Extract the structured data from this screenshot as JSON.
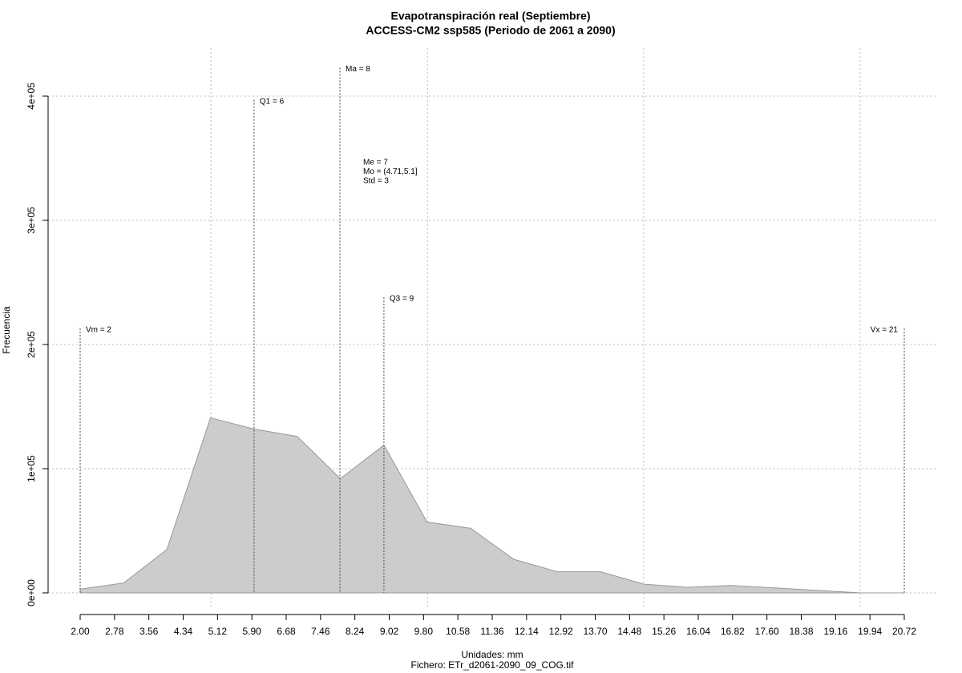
{
  "chart_data": {
    "type": "area",
    "title": "Evapotranspiración real (Septiembre)",
    "subtitle": "ACCESS-CM2 ssp585 (Periodo de 2061 a 2090)",
    "x_label": "Unidades: mm",
    "caption": "Fichero: ETr_d2061-2090_09_COG.tif",
    "y_label": "Frecuencia",
    "x": [
      2.0,
      2.99,
      3.97,
      4.96,
      5.94,
      6.93,
      7.91,
      8.9,
      9.88,
      10.87,
      11.85,
      12.84,
      13.82,
      14.81,
      15.79,
      16.78,
      17.76,
      18.75,
      19.73,
      20.72
    ],
    "values": [
      3000,
      8000,
      35000,
      141000,
      132000,
      126000,
      92000,
      119000,
      57000,
      52000,
      27000,
      17000,
      17000,
      7000,
      4500,
      6000,
      4000,
      2000,
      0,
      0
    ],
    "color": "#cccccc",
    "xlim": [
      2,
      20.72
    ],
    "ylim": [
      0,
      400000
    ],
    "xticks": [
      {
        "value": 2,
        "label": "2.00"
      },
      {
        "value": 2.78,
        "label": "2.78"
      },
      {
        "value": 3.56,
        "label": "3.56"
      },
      {
        "value": 4.34,
        "label": "4.34"
      },
      {
        "value": 5.12,
        "label": "5.12"
      },
      {
        "value": 5.9,
        "label": "5.90"
      },
      {
        "value": 6.68,
        "label": "6.68"
      },
      {
        "value": 7.46,
        "label": "7.46"
      },
      {
        "value": 8.24,
        "label": "8.24"
      },
      {
        "value": 9.02,
        "label": "9.02"
      },
      {
        "value": 9.8,
        "label": "9.80"
      },
      {
        "value": 10.58,
        "label": "10.58"
      },
      {
        "value": 11.36,
        "label": "11.36"
      },
      {
        "value": 12.14,
        "label": "12.14"
      },
      {
        "value": 12.92,
        "label": "12.92"
      },
      {
        "value": 13.7,
        "label": "13.70"
      },
      {
        "value": 14.48,
        "label": "14.48"
      },
      {
        "value": 15.26,
        "label": "15.26"
      },
      {
        "value": 16.04,
        "label": "16.04"
      },
      {
        "value": 16.82,
        "label": "16.82"
      },
      {
        "value": 17.6,
        "label": "17.60"
      },
      {
        "value": 18.38,
        "label": "18.38"
      },
      {
        "value": 19.16,
        "label": "19.16"
      },
      {
        "value": 19.94,
        "label": "19.94"
      },
      {
        "value": 20.72,
        "label": "20.72"
      }
    ],
    "yticks": [
      {
        "value": 0,
        "label": "0e+00"
      },
      {
        "value": 100000,
        "label": "1e+05"
      },
      {
        "value": 200000,
        "label": "2e+05"
      },
      {
        "value": 300000,
        "label": "3e+05"
      },
      {
        "value": 400000,
        "label": "4e+05"
      }
    ],
    "xgrid": [
      4.97,
      9.89,
      14.8,
      19.72
    ],
    "grid": true,
    "markers": [
      {
        "label": "Vm = 2",
        "x": 2,
        "y": 213000
      },
      {
        "label": "Q1 = 6",
        "x": 5.95,
        "y": 397000
      },
      {
        "label": "Ma = 8",
        "x": 7.9,
        "y": 423000
      },
      {
        "label": "Q3 = 9",
        "x": 8.9,
        "y": 238000
      },
      {
        "label": "Vx = 21",
        "x": 20.72,
        "y": 213000
      }
    ],
    "stats": [
      "Me = 7",
      "Mo = (4.71,5.1]",
      "Std = 3"
    ]
  }
}
